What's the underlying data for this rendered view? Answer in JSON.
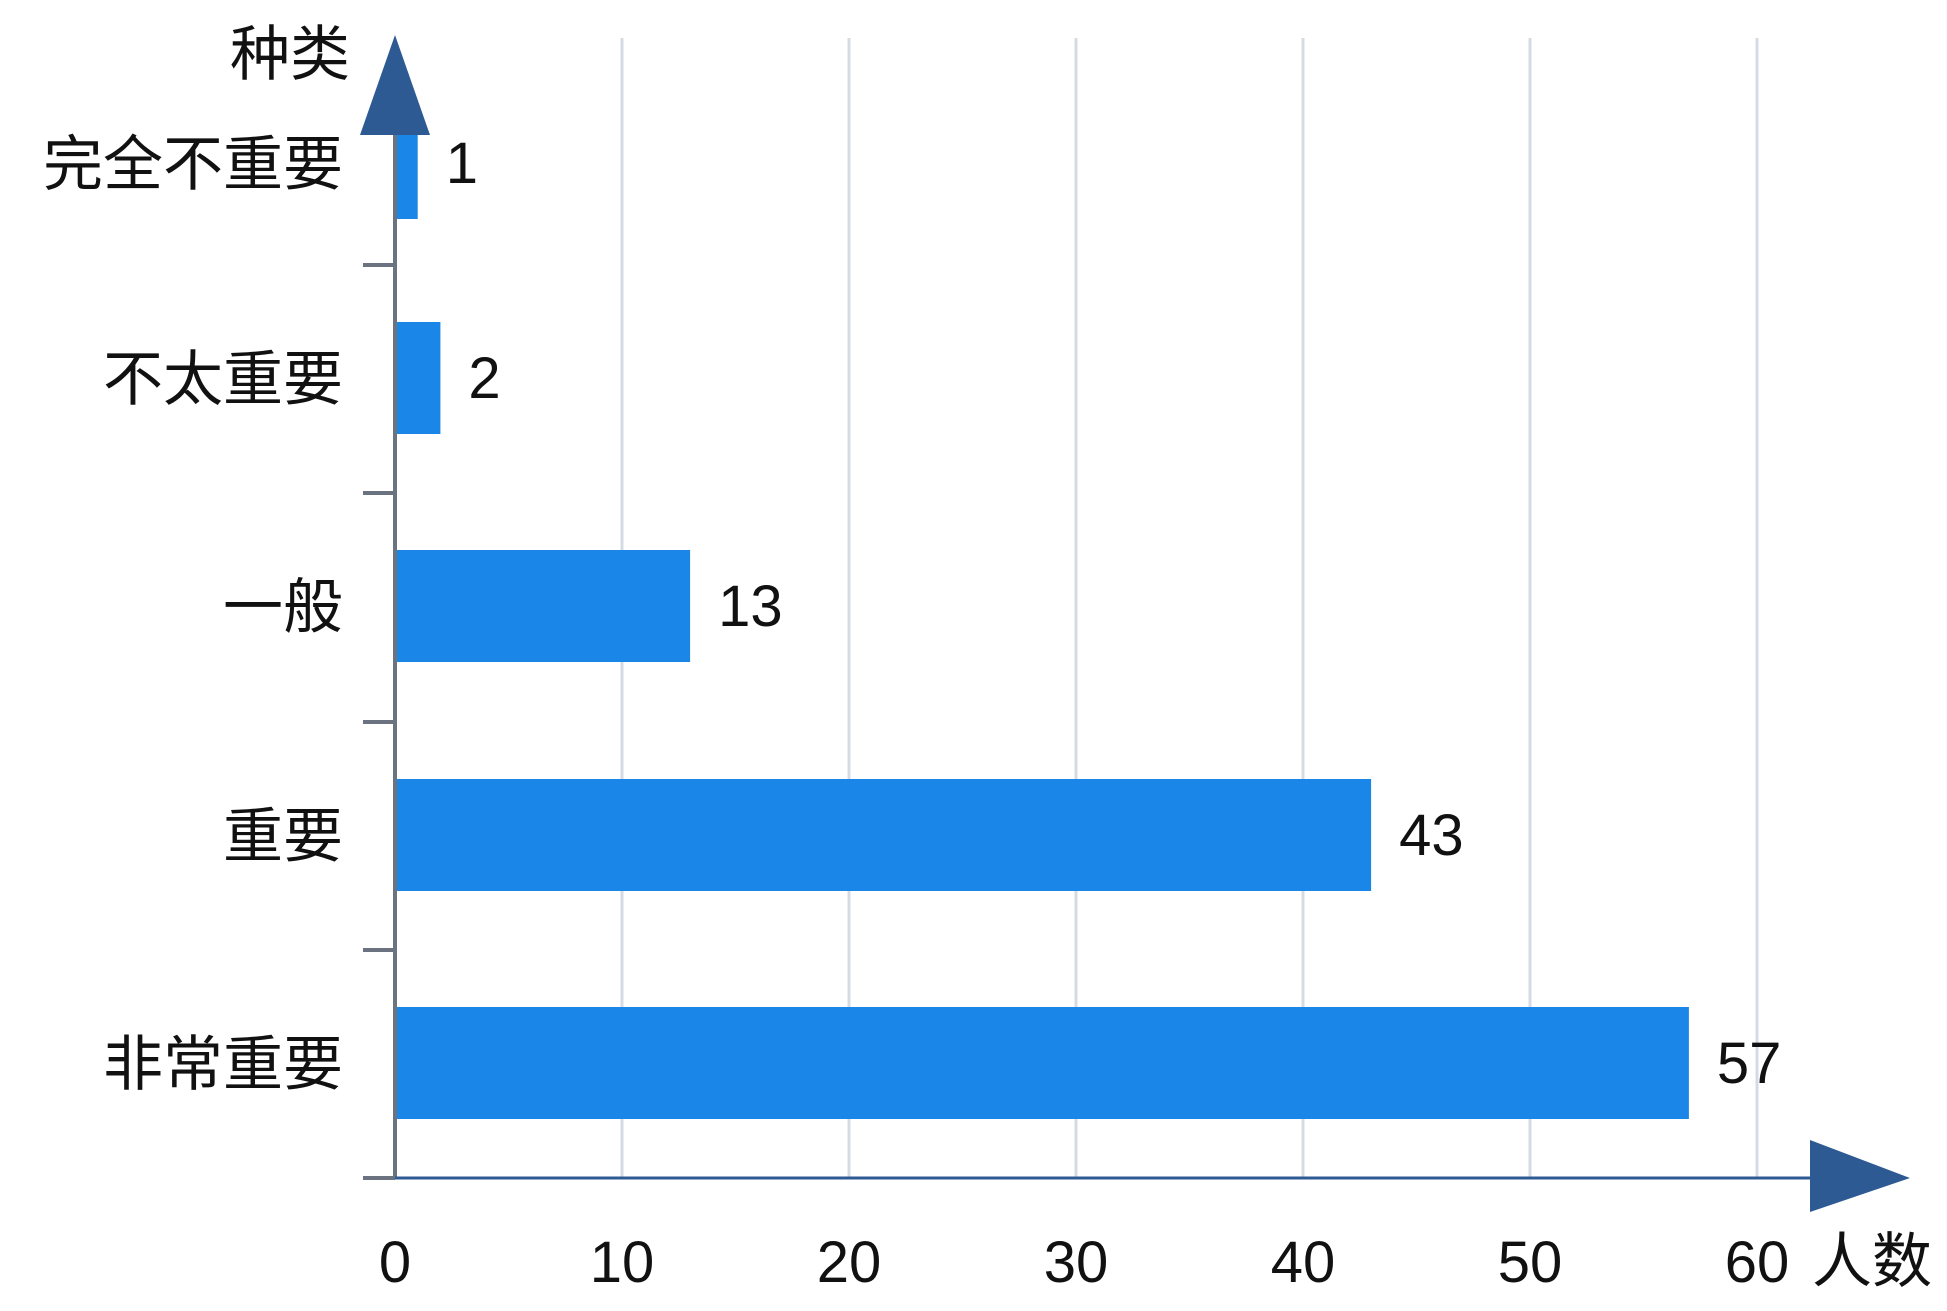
{
  "chart_data": {
    "type": "bar",
    "orientation": "horizontal",
    "categories": [
      "完全不重要",
      "不太重要",
      "一般",
      "重要",
      "非常重要"
    ],
    "values": [
      1,
      2,
      13,
      43,
      57
    ],
    "xlabel": "人数",
    "ylabel": "种类",
    "xlim": [
      0,
      60
    ],
    "xticks": [
      "0",
      "10",
      "20",
      "30",
      "40",
      "50",
      "60"
    ],
    "grid": "vertical",
    "legend": "none",
    "colors": {
      "bar": "#1a86e8",
      "axis_arrow": "#2e5a94",
      "grid": "#d5dbe3",
      "axis_line": "#6b7280",
      "text": "#111111"
    }
  }
}
